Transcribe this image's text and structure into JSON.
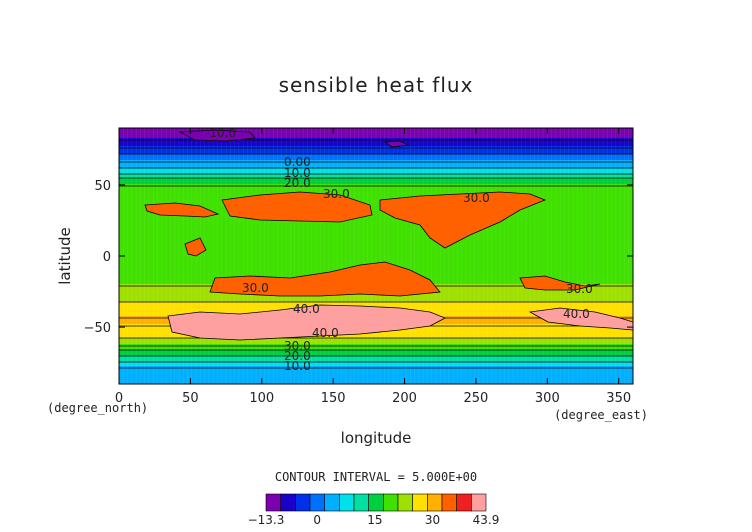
{
  "chart_data": {
    "type": "heatmap",
    "title": "sensible heat flux",
    "xlabel": "longitude",
    "ylabel": "latitude",
    "x_unit": "(degree_east)",
    "y_unit": "(degree_north)",
    "xlim": [
      0,
      360
    ],
    "ylim": [
      -90,
      90
    ],
    "x_ticks": [
      0,
      50,
      100,
      150,
      200,
      250,
      300,
      350
    ],
    "y_ticks": [
      -50,
      0,
      50
    ],
    "contour_interval_text": "CONTOUR INTERVAL = 5.000E+00",
    "contour_labels": [
      "-10.0",
      "0.00",
      "10.0",
      "20.0",
      "30.0",
      "40.0"
    ],
    "colorbar": {
      "min_label": "-13.3",
      "max_label": "43.9",
      "tick_labels": [
        "0",
        "15",
        "30"
      ],
      "colors": [
        "#7a00b0",
        "#1a00c8",
        "#0030e8",
        "#0070ff",
        "#00b0ff",
        "#00e0e8",
        "#00e0a0",
        "#00d040",
        "#40e000",
        "#a0e000",
        "#ffe000",
        "#ffb000",
        "#ff6000",
        "#f02020",
        "#ffa0a0"
      ]
    },
    "latitude_profile": [
      {
        "lat": 85,
        "value": -12
      },
      {
        "lat": 78,
        "value": -6
      },
      {
        "lat": 70,
        "value": 2
      },
      {
        "lat": 60,
        "value": 12
      },
      {
        "lat": 55,
        "value": 20
      },
      {
        "lat": 48,
        "value": 27
      },
      {
        "lat": 40,
        "value": 29
      },
      {
        "lat": 20,
        "value": 28
      },
      {
        "lat": 0,
        "value": 28
      },
      {
        "lat": -15,
        "value": 29
      },
      {
        "lat": -25,
        "value": 31
      },
      {
        "lat": -35,
        "value": 37
      },
      {
        "lat": -45,
        "value": 41
      },
      {
        "lat": -55,
        "value": 38
      },
      {
        "lat": -62,
        "value": 30
      },
      {
        "lat": -70,
        "value": 20
      },
      {
        "lat": -78,
        "value": 10
      },
      {
        "lat": -86,
        "value": 7
      }
    ]
  }
}
